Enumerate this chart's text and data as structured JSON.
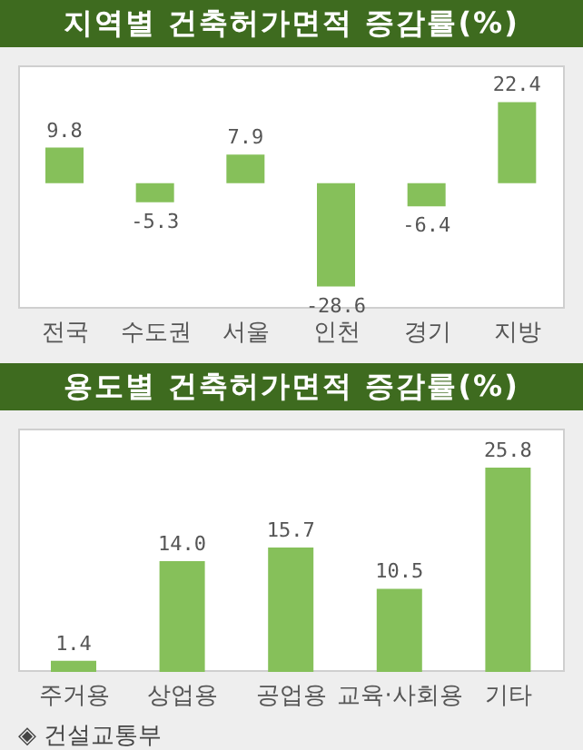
{
  "chart_data": [
    {
      "type": "bar",
      "title": "지역별 건축허가면적 증감률(%)",
      "categories": [
        "전국",
        "수도권",
        "서울",
        "인천",
        "경기",
        "지방"
      ],
      "values": [
        9.8,
        -5.3,
        7.9,
        -28.6,
        -6.4,
        22.4
      ],
      "color": "#86c05a",
      "data_labels": true,
      "grid": false,
      "legend": false
    },
    {
      "type": "bar",
      "title": "용도별 건축허가면적 증감률(%)",
      "categories": [
        "주거용",
        "상업용",
        "공업용",
        "교육·사회용",
        "기타"
      ],
      "values": [
        1.4,
        14.0,
        15.7,
        10.5,
        25.8
      ],
      "value_labels": [
        "1.4",
        "14.0",
        "15.7",
        "10.5",
        "25.8"
      ],
      "color": "#86c05a",
      "grid": false,
      "legend": false,
      "annotations": [
        "◈ 건설교통부"
      ]
    }
  ]
}
